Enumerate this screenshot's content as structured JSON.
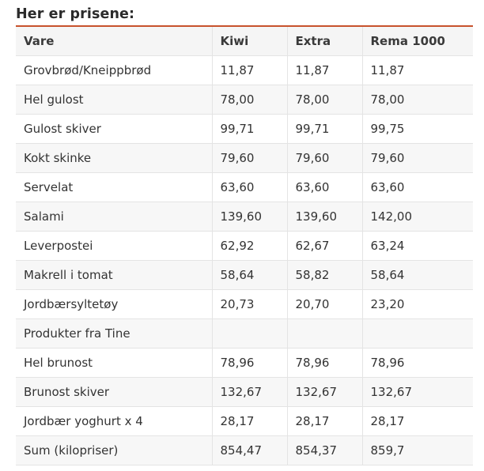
{
  "heading": "Her er prisene:",
  "table": {
    "headers": [
      "Vare",
      "Kiwi",
      "Extra",
      "Rema 1000"
    ],
    "rows": [
      [
        "Grovbrød/Kneippbrød",
        "11,87",
        "11,87",
        "11,87"
      ],
      [
        "Hel gulost",
        "78,00",
        "78,00",
        "78,00"
      ],
      [
        "Gulost skiver",
        "99,71",
        "99,71",
        "99,75"
      ],
      [
        "Kokt skinke",
        "79,60",
        "79,60",
        "79,60"
      ],
      [
        "Servelat",
        "63,60",
        "63,60",
        "63,60"
      ],
      [
        "Salami",
        "139,60",
        "139,60",
        "142,00"
      ],
      [
        "Leverpostei",
        "62,92",
        "62,67",
        "63,24"
      ],
      [
        "Makrell i tomat",
        "58,64",
        "58,82",
        "58,64"
      ],
      [
        "Jordbærsyltetøy",
        "20,73",
        "20,70",
        "23,20"
      ],
      [
        "Produkter fra Tine",
        "",
        "",
        ""
      ],
      [
        "Hel brunost",
        "78,96",
        "78,96",
        "78,96"
      ],
      [
        "Brunost skiver",
        "132,67",
        "132,67",
        "132,67"
      ],
      [
        "Jordbær yoghurt x 4",
        "28,17",
        "28,17",
        "28,17"
      ],
      [
        "Sum (kilopriser)",
        "854,47",
        "854,37",
        "859,7"
      ]
    ]
  },
  "colors": {
    "accent_rule": "#c8522c",
    "grid_line": "#e4e4e4",
    "header_bg": "#f5f5f5"
  }
}
